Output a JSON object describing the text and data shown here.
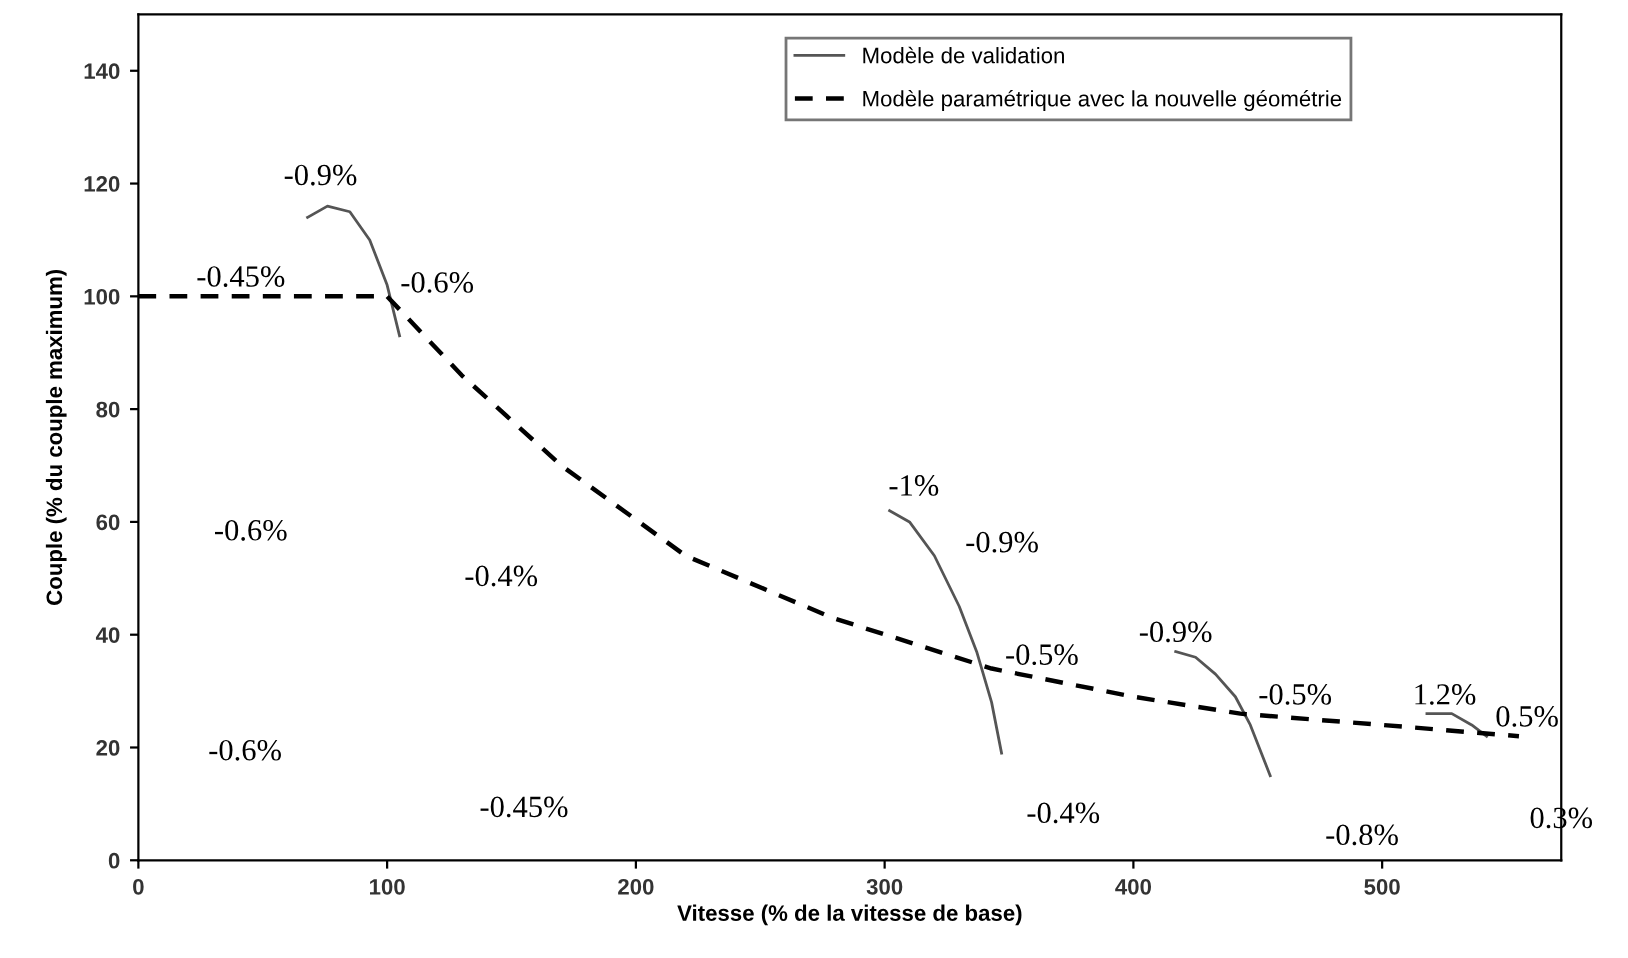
{
  "chart_data": {
    "type": "line",
    "xlabel": "Vitesse (% de la vitesse de base)",
    "ylabel": "Couple (% du couple maximum)",
    "xlim": [
      0,
      572
    ],
    "ylim": [
      0,
      150
    ],
    "xticks": [
      0,
      100,
      200,
      300,
      400,
      500
    ],
    "yticks": [
      0,
      20,
      40,
      60,
      80,
      100,
      120,
      140
    ],
    "grid": false,
    "legend": "top right",
    "marker": "none",
    "series": [
      {
        "name": "Modèle de validation",
        "color": "#555555",
        "line_style": "solid",
        "x": [
          68,
          76,
          85,
          93,
          100,
          105,
          200,
          302,
          310,
          320,
          330,
          337,
          343,
          347,
          380,
          417,
          425,
          433,
          441,
          447,
          455,
          490,
          518,
          528,
          536,
          542
        ],
        "values": [
          114,
          116,
          115,
          110,
          102,
          93,
          null,
          62,
          60,
          54,
          45,
          37,
          28,
          19,
          null,
          37,
          36,
          33,
          29,
          24,
          15,
          null,
          26,
          26,
          24,
          22
        ]
      },
      {
        "name": "Modèle paramétrique avec la nouvelle géométrie",
        "color": "#000000",
        "line_style": "dashed",
        "x": [
          0,
          100,
          130,
          170,
          220,
          279,
          343,
          400,
          443,
          500,
          555
        ],
        "values": [
          100,
          100,
          86,
          70,
          54,
          43,
          34,
          29,
          26,
          24,
          22
        ]
      }
    ],
    "annotations": [
      "-0.9%",
      "-0.45%",
      "-0.6%",
      "-0.6%",
      "-0.4%",
      "-0.6%",
      "-0.45%",
      "-1%",
      "-0.9%",
      "-0.5%",
      "-0.4%",
      "-0.9%",
      "-0.5%",
      "-0.8%",
      "1.2%",
      "0.5%",
      "0.3%"
    ]
  }
}
